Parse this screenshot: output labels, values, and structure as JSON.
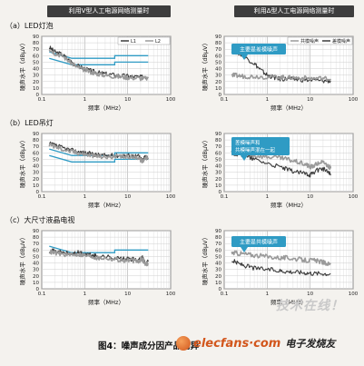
{
  "header": {
    "left": "利用V型人工电源网络测量时",
    "right": "利用Δ型人工电源网络测量时"
  },
  "rows": [
    {
      "label": "（a）LED灯泡"
    },
    {
      "label": "（b）LED吊灯"
    },
    {
      "label": "（c）大尺寸液晶电视"
    }
  ],
  "legends": {
    "left": [
      "L1",
      "L2"
    ],
    "right": [
      "共模噪声",
      "差模噪声"
    ]
  },
  "figure_caption": "图4：噪声成分因产品而异",
  "watermark": "技术在线！",
  "logo": {
    "text": "elecfans·com",
    "cn": "电子发烧友"
  },
  "colors": {
    "limit": "#2f9bc4",
    "callout": "#2f9bc4",
    "series_dark": "#3a3a3a",
    "series_light": "#9a9a9a"
  },
  "chart_data": [
    {
      "type": "line",
      "panel": "a-left",
      "x_scale": "log",
      "xlim": [
        0.1,
        100
      ],
      "ylim": [
        0,
        90
      ],
      "xticks": [
        "0.1",
        "1",
        "10",
        "100"
      ],
      "yticks": [
        "0",
        "10",
        "20",
        "30",
        "40",
        "50",
        "60",
        "70",
        "80",
        "90"
      ],
      "xlabel": "频率（MHz）",
      "ylabel": "噪声水平（dBμV）",
      "series": [
        {
          "name": "L1",
          "color": "dark",
          "points": [
            [
              0.15,
              73
            ],
            [
              0.2,
              66
            ],
            [
              0.3,
              62
            ],
            [
              0.5,
              50
            ],
            [
              0.7,
              44
            ],
            [
              1,
              40
            ],
            [
              1.5,
              36
            ],
            [
              2,
              34
            ],
            [
              3,
              32
            ],
            [
              5,
              30
            ],
            [
              8,
              29
            ],
            [
              12,
              28
            ],
            [
              20,
              27
            ],
            [
              30,
              27
            ]
          ]
        },
        {
          "name": "L2",
          "color": "light",
          "points": [
            [
              0.15,
              71
            ],
            [
              0.2,
              64
            ],
            [
              0.3,
              60
            ],
            [
              0.5,
              48
            ],
            [
              0.7,
              42
            ],
            [
              1,
              38
            ],
            [
              1.5,
              34
            ],
            [
              2,
              32
            ],
            [
              3,
              30
            ],
            [
              5,
              28
            ],
            [
              8,
              27
            ],
            [
              12,
              26
            ],
            [
              20,
              25
            ],
            [
              30,
              25
            ]
          ]
        }
      ],
      "limits": [
        {
          "points": [
            [
              0.15,
              66
            ],
            [
              0.5,
              56
            ],
            [
              5,
              56
            ],
            [
              5,
              60
            ],
            [
              30,
              60
            ]
          ]
        },
        {
          "points": [
            [
              0.15,
              56
            ],
            [
              0.5,
              46
            ],
            [
              5,
              46
            ],
            [
              5,
              50
            ],
            [
              30,
              50
            ]
          ]
        }
      ]
    },
    {
      "type": "line",
      "panel": "a-right",
      "x_scale": "log",
      "xlim": [
        0.1,
        100
      ],
      "ylim": [
        0,
        90
      ],
      "xticks": [
        "0.1",
        "1",
        "10",
        "100"
      ],
      "yticks": [
        "0",
        "10",
        "20",
        "30",
        "40",
        "50",
        "60",
        "70",
        "80",
        "90"
      ],
      "xlabel": "频率（MHz）",
      "ylabel": "噪声水平（dBμV）",
      "annotation": "主要是差模噪声",
      "series": [
        {
          "name": "差模噪声",
          "color": "dark",
          "points": [
            [
              0.15,
              68
            ],
            [
              0.2,
              65
            ],
            [
              0.3,
              58
            ],
            [
              0.5,
              48
            ],
            [
              0.7,
              38
            ],
            [
              1,
              30
            ],
            [
              1.5,
              26
            ],
            [
              2,
              24
            ],
            [
              3,
              24
            ],
            [
              5,
              23
            ],
            [
              10,
              22
            ],
            [
              20,
              21
            ],
            [
              30,
              21
            ]
          ]
        },
        {
          "name": "共模噪声",
          "color": "light",
          "points": [
            [
              0.15,
              30
            ],
            [
              0.2,
              29
            ],
            [
              0.3,
              28
            ],
            [
              0.5,
              28
            ],
            [
              1,
              27
            ],
            [
              2,
              27
            ],
            [
              3,
              26
            ],
            [
              5,
              26
            ],
            [
              10,
              25
            ],
            [
              20,
              25
            ],
            [
              30,
              24
            ]
          ]
        }
      ]
    },
    {
      "type": "line",
      "panel": "b-left",
      "x_scale": "log",
      "xlim": [
        0.1,
        100
      ],
      "ylim": [
        0,
        90
      ],
      "xticks": [
        "0.1",
        "1",
        "10",
        "100"
      ],
      "yticks": [
        "0",
        "10",
        "20",
        "30",
        "40",
        "50",
        "60",
        "70",
        "80",
        "90"
      ],
      "xlabel": "频率（MHz）",
      "ylabel": "噪声水平（dBμV）",
      "series": [
        {
          "name": "L1",
          "color": "dark",
          "points": [
            [
              0.15,
              74
            ],
            [
              0.2,
              72
            ],
            [
              0.3,
              68
            ],
            [
              0.5,
              64
            ],
            [
              0.7,
              62
            ],
            [
              1,
              60
            ],
            [
              1.5,
              58
            ],
            [
              2,
              57
            ],
            [
              3,
              56
            ],
            [
              5,
              56
            ],
            [
              8,
              56
            ],
            [
              12,
              56
            ],
            [
              18,
              55
            ],
            [
              22,
              48
            ],
            [
              26,
              56
            ],
            [
              30,
              52
            ]
          ]
        },
        {
          "name": "L2",
          "color": "light",
          "points": [
            [
              0.15,
              72
            ],
            [
              0.2,
              70
            ],
            [
              0.3,
              66
            ],
            [
              0.5,
              62
            ],
            [
              0.7,
              60
            ],
            [
              1,
              58
            ],
            [
              1.5,
              56
            ],
            [
              2,
              55
            ],
            [
              3,
              54
            ],
            [
              5,
              54
            ],
            [
              8,
              54
            ],
            [
              12,
              54
            ],
            [
              18,
              53
            ],
            [
              22,
              46
            ],
            [
              26,
              54
            ],
            [
              30,
              50
            ]
          ]
        }
      ],
      "limits": [
        {
          "points": [
            [
              0.15,
              66
            ],
            [
              0.5,
              56
            ],
            [
              5,
              56
            ],
            [
              5,
              60
            ],
            [
              30,
              60
            ]
          ]
        },
        {
          "points": [
            [
              0.15,
              56
            ],
            [
              0.5,
              46
            ],
            [
              5,
              46
            ],
            [
              5,
              50
            ],
            [
              30,
              50
            ]
          ]
        }
      ]
    },
    {
      "type": "line",
      "panel": "b-right",
      "x_scale": "log",
      "xlim": [
        0.1,
        100
      ],
      "ylim": [
        0,
        90
      ],
      "xticks": [
        "0.1",
        "1",
        "10",
        "100"
      ],
      "yticks": [
        "0",
        "10",
        "20",
        "30",
        "40",
        "50",
        "60",
        "70",
        "80",
        "90"
      ],
      "xlabel": "频率（MHz）",
      "ylabel": "噪声水平（dBμV）",
      "annotation": "差模噪声和共模噪声混在一起",
      "series": [
        {
          "name": "共模噪声",
          "color": "light",
          "points": [
            [
              0.15,
              62
            ],
            [
              0.2,
              60
            ],
            [
              0.3,
              58
            ],
            [
              0.5,
              56
            ],
            [
              1,
              54
            ],
            [
              2,
              52
            ],
            [
              3,
              50
            ],
            [
              5,
              46
            ],
            [
              8,
              42
            ],
            [
              10,
              38
            ],
            [
              12,
              40
            ],
            [
              18,
              46
            ],
            [
              22,
              44
            ],
            [
              28,
              38
            ],
            [
              30,
              36
            ]
          ]
        },
        {
          "name": "差模噪声",
          "color": "dark",
          "points": [
            [
              0.15,
              60
            ],
            [
              0.2,
              58
            ],
            [
              0.3,
              55
            ],
            [
              0.5,
              50
            ],
            [
              1,
              44
            ],
            [
              2,
              38
            ],
            [
              3,
              34
            ],
            [
              5,
              30
            ],
            [
              8,
              28
            ],
            [
              10,
              26
            ],
            [
              12,
              30
            ],
            [
              18,
              36
            ],
            [
              22,
              34
            ],
            [
              28,
              28
            ],
            [
              30,
              26
            ]
          ]
        }
      ]
    },
    {
      "type": "line",
      "panel": "c-left",
      "x_scale": "log",
      "xlim": [
        0.1,
        100
      ],
      "ylim": [
        0,
        90
      ],
      "xticks": [
        "0.1",
        "1",
        "10",
        "100"
      ],
      "yticks": [
        "0",
        "10",
        "20",
        "30",
        "40",
        "50",
        "60",
        "70",
        "80",
        "90"
      ],
      "xlabel": "频率（MHz）",
      "ylabel": "噪声水平（dBμV）",
      "series": [
        {
          "name": "L1",
          "color": "dark",
          "points": [
            [
              0.15,
              60
            ],
            [
              0.2,
              58
            ],
            [
              0.3,
              56
            ],
            [
              0.5,
              54
            ],
            [
              0.7,
              56
            ],
            [
              1,
              54
            ],
            [
              1.5,
              52
            ],
            [
              2,
              50
            ],
            [
              3,
              50
            ],
            [
              5,
              48
            ],
            [
              8,
              46
            ],
            [
              12,
              46
            ],
            [
              18,
              44
            ],
            [
              22,
              48
            ],
            [
              26,
              40
            ],
            [
              30,
              42
            ]
          ]
        },
        {
          "name": "L2",
          "color": "light",
          "points": [
            [
              0.15,
              58
            ],
            [
              0.2,
              56
            ],
            [
              0.3,
              54
            ],
            [
              0.5,
              52
            ],
            [
              0.7,
              54
            ],
            [
              1,
              52
            ],
            [
              1.5,
              50
            ],
            [
              2,
              48
            ],
            [
              3,
              48
            ],
            [
              5,
              46
            ],
            [
              8,
              44
            ],
            [
              12,
              44
            ],
            [
              18,
              42
            ],
            [
              22,
              46
            ],
            [
              26,
              38
            ],
            [
              30,
              40
            ]
          ]
        }
      ],
      "limits": [
        {
          "points": [
            [
              0.15,
              66
            ],
            [
              0.5,
              56
            ],
            [
              5,
              56
            ],
            [
              5,
              60
            ],
            [
              30,
              60
            ]
          ]
        }
      ]
    },
    {
      "type": "line",
      "panel": "c-right",
      "x_scale": "log",
      "xlim": [
        0.1,
        100
      ],
      "ylim": [
        0,
        90
      ],
      "xticks": [
        "0.1",
        "1",
        "10",
        "100"
      ],
      "yticks": [
        "0",
        "10",
        "20",
        "30",
        "40",
        "50",
        "60",
        "70",
        "80",
        "90"
      ],
      "xlabel": "频率（MHz）",
      "ylabel": "噪声水平（dBμV）",
      "annotation": "主要是共模噪声",
      "series": [
        {
          "name": "共模噪声",
          "color": "light",
          "points": [
            [
              0.15,
              56
            ],
            [
              0.2,
              55
            ],
            [
              0.3,
              54
            ],
            [
              0.5,
              52
            ],
            [
              1,
              50
            ],
            [
              2,
              48
            ],
            [
              3,
              48
            ],
            [
              5,
              46
            ],
            [
              8,
              44
            ],
            [
              12,
              44
            ],
            [
              18,
              42
            ],
            [
              22,
              40
            ],
            [
              30,
              38
            ]
          ]
        },
        {
          "name": "差模噪声",
          "color": "dark",
          "points": [
            [
              0.15,
              44
            ],
            [
              0.2,
              40
            ],
            [
              0.3,
              36
            ],
            [
              0.5,
              32
            ],
            [
              1,
              30
            ],
            [
              2,
              28
            ],
            [
              3,
              27
            ],
            [
              5,
              26
            ],
            [
              8,
              25
            ],
            [
              12,
              24
            ],
            [
              20,
              24
            ],
            [
              30,
              23
            ]
          ]
        }
      ]
    }
  ]
}
